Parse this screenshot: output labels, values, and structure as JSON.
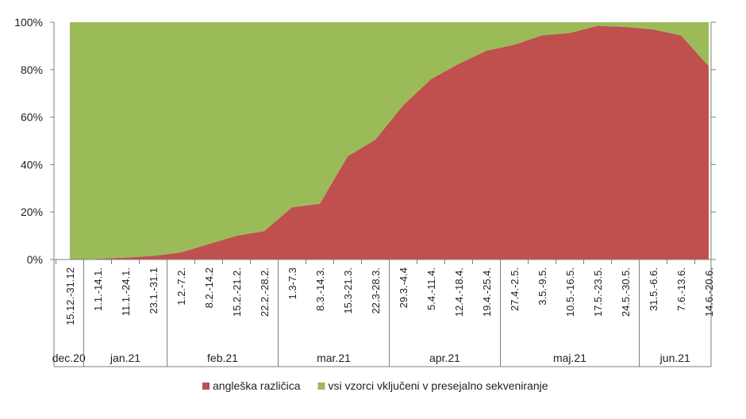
{
  "chart_data": {
    "type": "area",
    "stacked_percent": true,
    "y_ticks": [
      "0%",
      "20%",
      "40%",
      "60%",
      "80%",
      "100%"
    ],
    "ylim": [
      0,
      100
    ],
    "categories": [
      "15.12.-31.12",
      "1.1.-14.1.",
      "11.1.-24.1.",
      "23.1.-31.1",
      "1.2.-7.2.",
      "8.2.-14.2",
      "15.2.-21.2.",
      "22.2.-28.2.",
      "1.3-7.3",
      "8.3.-14.3.",
      "15.3-21.3.",
      "22.3-28.3.",
      "29.3.-4.4",
      "5.4.-11.4.",
      "12.4.-18.4.",
      "19.4.-25.4.",
      "27.4.-2.5.",
      "3.5.-9.5.",
      "10.5.-16.5.",
      "17.5.-23.5.",
      "24.5.-30.5.",
      "31.5.-6.6.",
      "7.6.-13.6.",
      "14.6.-20.6."
    ],
    "groups": [
      {
        "label": "dec.20",
        "count": 1
      },
      {
        "label": "jan.21",
        "count": 3
      },
      {
        "label": "feb.21",
        "count": 4
      },
      {
        "label": "mar.21",
        "count": 4
      },
      {
        "label": "apr.21",
        "count": 4
      },
      {
        "label": "maj.21",
        "count": 5
      },
      {
        "label": "jun.21",
        "count": 3
      }
    ],
    "series": [
      {
        "name": "angleška različica",
        "color": "#c0504d",
        "values": [
          0,
          0.3,
          0.8,
          1.5,
          3,
          6.5,
          10,
          12,
          22,
          23.5,
          43.5,
          50.5,
          65,
          76,
          82.5,
          88,
          90.5,
          94.5,
          95.5,
          98.5,
          98,
          97,
          94.5,
          81.5
        ]
      },
      {
        "name": "vsi vzorci vključeni v presejalno sekveniranje",
        "color": "#9bbb59",
        "values": [
          100,
          99.7,
          99.2,
          98.5,
          97,
          93.5,
          90,
          88,
          78,
          76.5,
          56.5,
          49.5,
          35,
          24,
          17.5,
          12,
          9.5,
          5.5,
          4.5,
          1.5,
          2,
          3,
          5.5,
          18.5
        ]
      }
    ],
    "legend": "bottom"
  }
}
